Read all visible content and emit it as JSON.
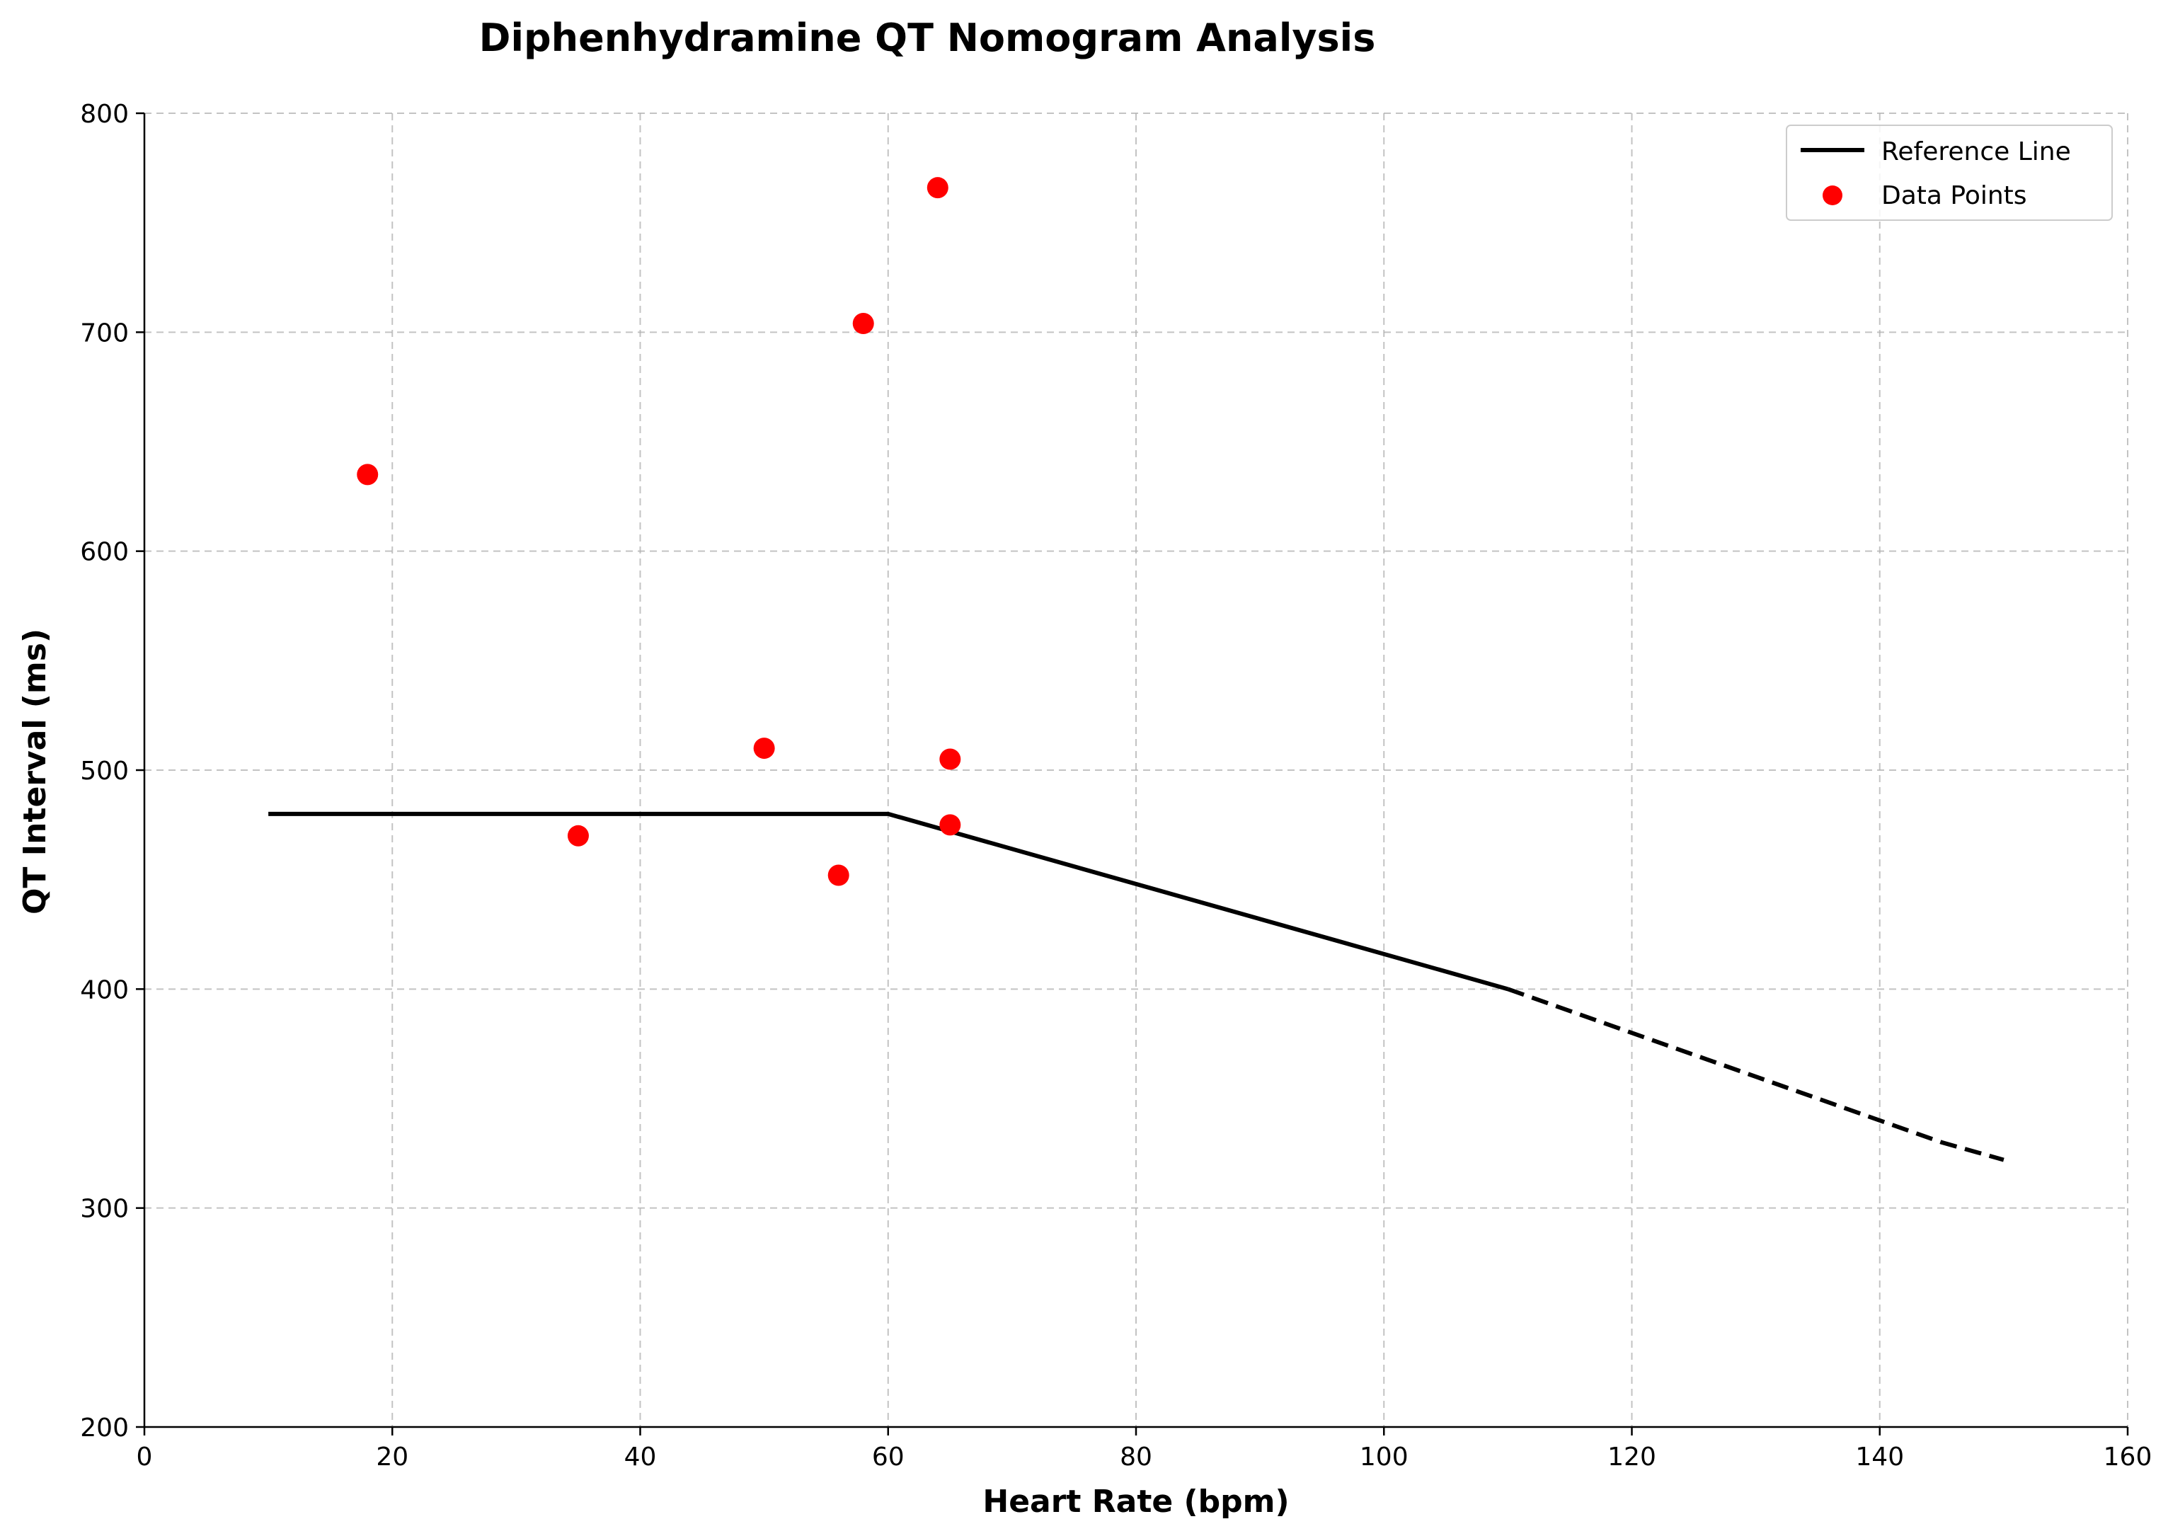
{
  "chart_data": {
    "type": "line",
    "title": "Diphenhydramine QT Nomogram Analysis",
    "xlabel": "Heart Rate (bpm)",
    "ylabel": "QT Interval (ms)",
    "xlim": [
      0,
      160
    ],
    "ylim": [
      200,
      800
    ],
    "xticks": [
      0,
      20,
      40,
      60,
      80,
      100,
      120,
      140,
      160
    ],
    "yticks": [
      200,
      300,
      400,
      500,
      600,
      700,
      800
    ],
    "grid": true,
    "legend_position": "top-right",
    "colors": {
      "reference": "#000000",
      "points": "#ff0000",
      "grid": "#b0b0b0"
    },
    "reference_line": {
      "name": "Reference Line",
      "solid": {
        "x": [
          10,
          60,
          110
        ],
        "y": [
          480,
          480,
          400
        ]
      },
      "dashed": {
        "x": [
          110,
          145,
          150
        ],
        "y": [
          400,
          330,
          322
        ]
      }
    },
    "scatter": {
      "name": "Data Points",
      "x": [
        18,
        35,
        50,
        56,
        58,
        64,
        65,
        65
      ],
      "y": [
        635,
        470,
        510,
        452,
        704,
        766,
        505,
        475
      ]
    }
  }
}
